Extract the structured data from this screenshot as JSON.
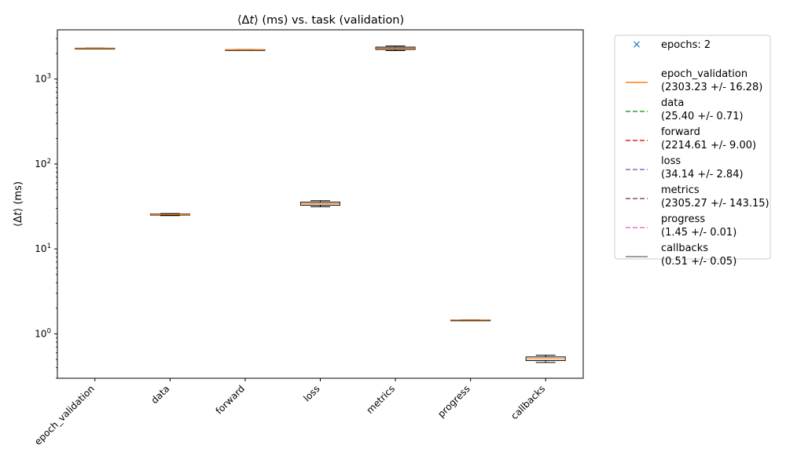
{
  "chart_data": {
    "type": "box",
    "title": "⟨Δt⟩ (ms) vs. task (validation)",
    "title_parts": {
      "pre": "⟨Δ",
      "var": "t",
      "post": "⟩ (ms) vs. task (validation)"
    },
    "ylabel": "⟨Δt⟩ (ms)",
    "ylabel_parts": {
      "pre": "⟨Δ",
      "var": "t",
      "post": "⟩ (ms)"
    },
    "yscale": "log",
    "ylim": [
      0.3,
      3800
    ],
    "yticks": [
      1,
      10,
      100,
      1000
    ],
    "ytick_labels": [
      {
        "base": "10",
        "exp": "0"
      },
      {
        "base": "10",
        "exp": "1"
      },
      {
        "base": "10",
        "exp": "2"
      },
      {
        "base": "10",
        "exp": "3"
      }
    ],
    "grid": false,
    "legend_placement": "outside-right",
    "box_color": "#000000",
    "median_color": "#ff7f0e",
    "categories": [
      "epoch_validation",
      "data",
      "forward",
      "loss",
      "metrics",
      "progress",
      "callbacks"
    ],
    "boxes": [
      {
        "task": "epoch_validation",
        "mean": 2303.23,
        "std": 16.28
      },
      {
        "task": "data",
        "mean": 25.4,
        "std": 0.71
      },
      {
        "task": "forward",
        "mean": 2214.61,
        "std": 9.0
      },
      {
        "task": "loss",
        "mean": 34.14,
        "std": 2.84
      },
      {
        "task": "metrics",
        "mean": 2305.27,
        "std": 143.15
      },
      {
        "task": "progress",
        "mean": 1.45,
        "std": 0.01
      },
      {
        "task": "callbacks",
        "mean": 0.51,
        "std": 0.05
      }
    ],
    "legend": [
      {
        "kind": "marker",
        "color": "#1f77b4",
        "line1": "epochs: 2",
        "line2": ""
      },
      {
        "kind": "solid",
        "color": "#ff7f0e",
        "line1": "epoch_validation",
        "line2": "(2303.23 +/- 16.28)"
      },
      {
        "kind": "dashed",
        "color": "#2ca02c",
        "line1": "data",
        "line2": "(25.40 +/- 0.71)"
      },
      {
        "kind": "dashed",
        "color": "#d62728",
        "line1": "forward",
        "line2": "(2214.61 +/- 9.00)"
      },
      {
        "kind": "dashed",
        "color": "#9467bd",
        "line1": "loss",
        "line2": "(34.14 +/- 2.84)"
      },
      {
        "kind": "dashed",
        "color": "#8c564b",
        "line1": "metrics",
        "line2": "(2305.27 +/- 143.15)"
      },
      {
        "kind": "dashed",
        "color": "#e377c2",
        "line1": "progress",
        "line2": "(1.45 +/- 0.01)"
      },
      {
        "kind": "solid",
        "color": "#7f7f7f",
        "line1": "callbacks",
        "line2": "(0.51 +/- 0.05)"
      }
    ]
  }
}
